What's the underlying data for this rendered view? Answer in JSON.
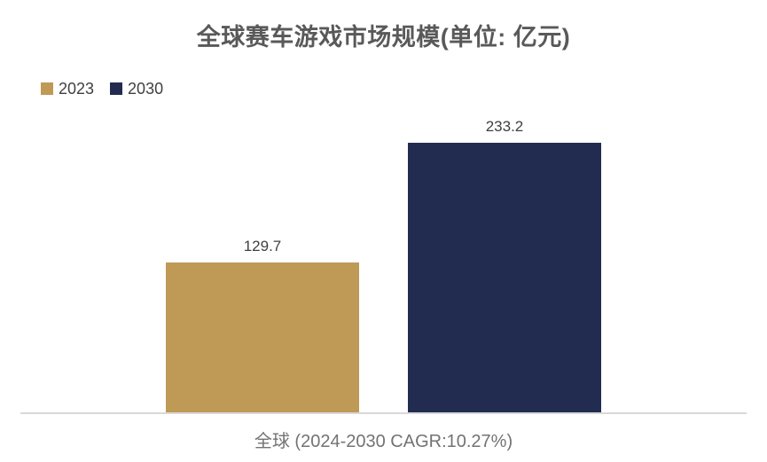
{
  "chart_data": {
    "type": "bar",
    "title": "全球赛车游戏市场规模(单位: 亿元)",
    "categories": [
      "全球 (2024-2030 CAGR:10.27%)"
    ],
    "series": [
      {
        "name": "2023",
        "color": "#BF9956",
        "values": [
          129.7
        ]
      },
      {
        "name": "2030",
        "color": "#222C51",
        "values": [
          233.2
        ]
      }
    ],
    "ylim": [
      0,
      250
    ],
    "grid": false,
    "legend_position": "top-left",
    "value_labels": true,
    "axis_line_color": "#D9D9D9",
    "title_text_color": "#595959",
    "label_text_color": "#404040",
    "category_text_color": "#737373"
  }
}
